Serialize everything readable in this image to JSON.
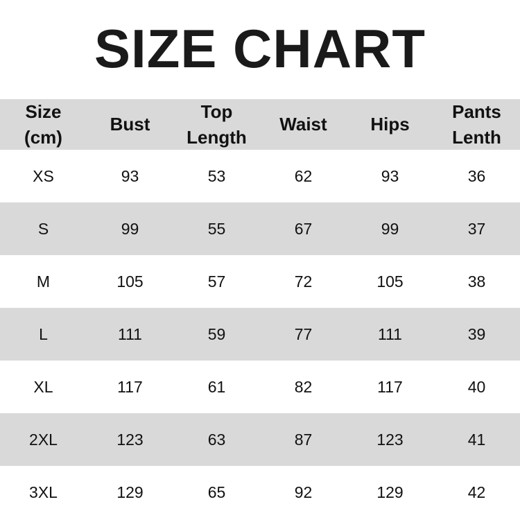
{
  "title": "SIZE CHART",
  "chart_data": {
    "type": "table",
    "columns": [
      "Size\n(cm)",
      "Bust",
      "Top\nLength",
      "Waist",
      "Hips",
      "Pants\nLenth"
    ],
    "rows": [
      [
        "XS",
        "93",
        "53",
        "62",
        "93",
        "36"
      ],
      [
        "S",
        "99",
        "55",
        "67",
        "99",
        "37"
      ],
      [
        "M",
        "105",
        "57",
        "72",
        "105",
        "38"
      ],
      [
        "L",
        "111",
        "59",
        "77",
        "111",
        "39"
      ],
      [
        "XL",
        "117",
        "61",
        "82",
        "117",
        "40"
      ],
      [
        "2XL",
        "123",
        "63",
        "87",
        "123",
        "41"
      ],
      [
        "3XL",
        "129",
        "65",
        "92",
        "129",
        "42"
      ]
    ],
    "stripe_color": "#d9d9d9"
  }
}
